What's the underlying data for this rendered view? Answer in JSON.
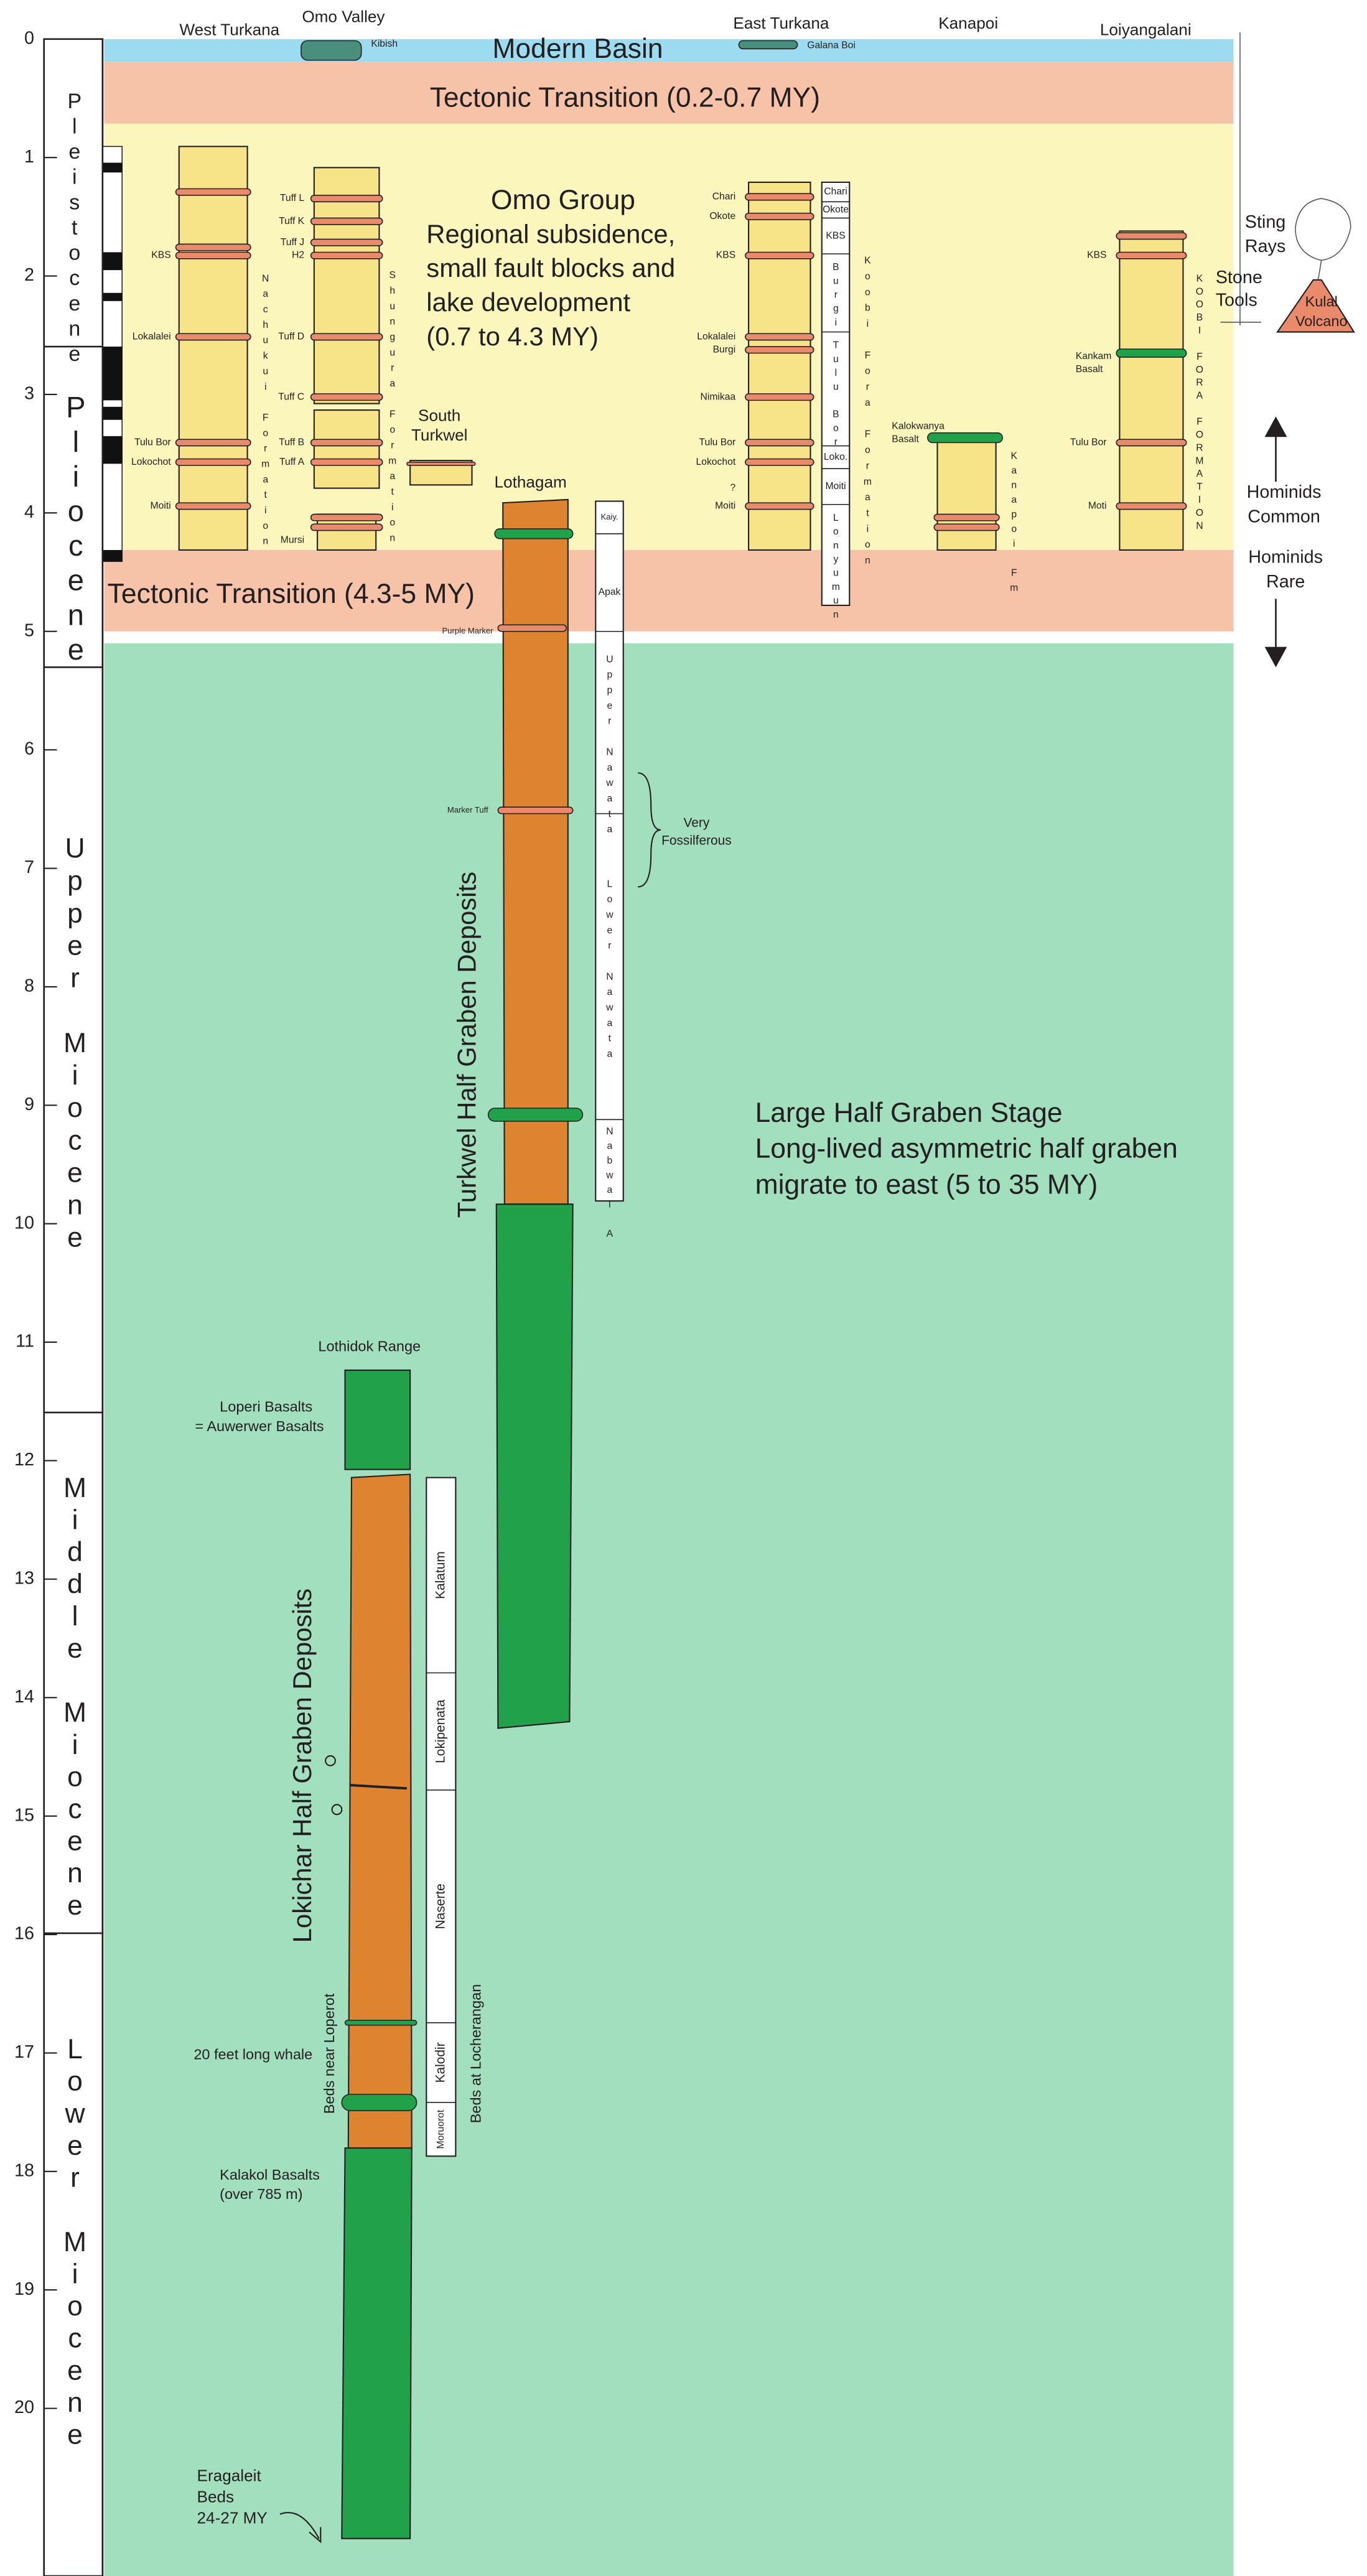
{
  "axis": {
    "ticks": [
      0,
      1,
      2,
      3,
      4,
      5,
      6,
      7,
      8,
      9,
      10,
      11,
      12,
      13,
      14,
      15,
      16,
      17,
      18,
      19,
      20
    ]
  },
  "epochs": [
    "Pleistocene",
    "Pliocene",
    "Upper Miocene",
    "Middle Miocene",
    "Lower Miocene"
  ],
  "localities": [
    "West Turkana",
    "Omo Valley",
    "East Turkana",
    "Kanapoi",
    "Loiyangalani"
  ],
  "stages": {
    "modern": "Modern Basin",
    "transition_upper": "Tectonic Transition (0.2-0.7 MY)",
    "omo": [
      "Omo Group",
      "Regional subsidence,",
      "small fault blocks and",
      "lake development",
      "(0.7 to 4.3  MY)"
    ],
    "transition_lower": "Tectonic Transition (4.3-5 MY)",
    "half_graben": [
      "Large Half Graben Stage",
      "Long-lived asymmetric half graben",
      "migrate to east  (5 to 35 MY)"
    ]
  },
  "west_turkana": {
    "formation": "Nachukui Formation",
    "tuffs": [
      "KBS",
      "Lokalalei",
      "Tulu Bor",
      "Lokochot",
      "Moiti"
    ]
  },
  "omo": {
    "formation": "Shungura Formation",
    "kibish": "Kibish",
    "tuffs": [
      "Tuff L",
      "Tuff K",
      "Tuff J",
      "H2",
      "Tuff D",
      "Tuff C",
      "Tuff B",
      "Tuff A",
      "Mursi"
    ]
  },
  "south_turkwel": [
    "South",
    "Turkwel"
  ],
  "east_turkana": {
    "formation": "Koobi Fora Formation",
    "galana_boi": "Galana Boi",
    "tuffs": [
      "Chari",
      "Okote",
      "KBS",
      "Lokalalei",
      "Burgi",
      "Nimikaa",
      "Tulu Bor",
      "Lokochot",
      "?",
      "Moiti"
    ],
    "members": [
      "Chari",
      "Okote",
      "KBS",
      "Burgi",
      "Tulu Bor",
      "Loko.",
      "Moiti",
      "Lonyumun"
    ]
  },
  "kanapoi": {
    "basalt": [
      "Kalokwanya",
      "Basalt"
    ],
    "formation": "Kanapoi Fm"
  },
  "loiyangalani": {
    "formation": "KOOBI FORA FORMATION",
    "tuffs": [
      "KBS",
      "Tulu Bor",
      "Moti"
    ],
    "kankam": [
      "Kankam",
      "Basalt"
    ]
  },
  "lothagam": {
    "title": "Lothagam",
    "markers": [
      "Purple Marker",
      "Marker Tuff"
    ],
    "members": [
      "Kaiy.",
      "Apak",
      "Upper Nawata",
      "Lower Nawata",
      "Nabwal A"
    ],
    "note": [
      "Very",
      "Fossilferous"
    ],
    "deposits": "Turkwel  Half Graben Deposits"
  },
  "lokichar": {
    "lothidok": "Lothidok Range",
    "loperi": [
      "Loperi Basalts",
      "= Auwerwer Basalts"
    ],
    "deposits": "Lokichar Half Graben Deposits",
    "whale": "20 feet long whale",
    "loperot": "Beds near Loperot",
    "locherangan": "Beds at Locherangan",
    "members": [
      "Kalatum",
      "Lokipenata",
      "Naserte",
      "Kalodir",
      "Moruorot"
    ],
    "kalakol": [
      "Kalakol Basalts",
      "(over 785 m)"
    ],
    "eragaleit": [
      "Eragaleit",
      "Beds",
      "24-27 MY"
    ]
  },
  "side": {
    "sting_rays": [
      "Sting",
      "Rays"
    ],
    "stone_tools": [
      "Stone",
      "Tools"
    ],
    "kulal": [
      "Kulal",
      "Volcano"
    ],
    "hominids_common": [
      "Hominids",
      "Common"
    ],
    "hominids_rare": [
      "Hominids",
      "Rare"
    ]
  }
}
